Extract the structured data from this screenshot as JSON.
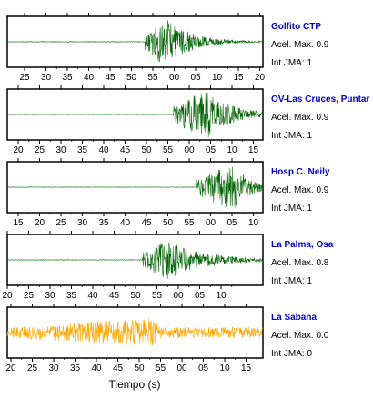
{
  "chart_data": {
    "type": "line",
    "xlabel": "Tiempo (s)",
    "traces": [
      {
        "station": "Golfito CTP",
        "accel_label": "Acel. Max. 0.9",
        "jma_label": "Int JMA: 1",
        "color": "#006400",
        "tick_labels": [
          "25",
          "30",
          "35",
          "40",
          "45",
          "50",
          "55",
          "00",
          "05",
          "10",
          "15",
          "20"
        ],
        "onset": 0.54,
        "peak": 0.62,
        "amplitude": 1.0,
        "noise": 0.01,
        "decay": 0.1
      },
      {
        "station": "OV-Las Cruces, Puntar",
        "accel_label": "Acel. Max. 0.9",
        "jma_label": "Int JMA: 1",
        "color": "#006400",
        "tick_labels": [
          "20",
          "25",
          "30",
          "35",
          "40",
          "45",
          "50",
          "55",
          "00",
          "05",
          "10",
          "15"
        ],
        "onset": 0.65,
        "peak": 0.78,
        "amplitude": 1.0,
        "noise": 0.01,
        "decay": 0.1
      },
      {
        "station": "Hosp C. Neily",
        "accel_label": "Acel. Max. 0.9",
        "jma_label": "Int JMA: 1",
        "color": "#006400",
        "tick_labels": [
          "15",
          "20",
          "25",
          "30",
          "35",
          "40",
          "45",
          "50",
          "55",
          "00",
          "05",
          "10"
        ],
        "onset": 0.74,
        "peak": 0.88,
        "amplitude": 1.0,
        "noise": 0.008,
        "decay": 0.07
      },
      {
        "station": "La Palma, Osa",
        "accel_label": "Acel. Max. 0.8",
        "jma_label": "Int JMA: 1",
        "color": "#006400",
        "tick_labels": [
          "20",
          "25",
          "30",
          "35",
          "40",
          "45",
          "50",
          "55",
          "00",
          "05",
          "10"
        ],
        "onset": 0.53,
        "peak": 0.62,
        "amplitude": 0.85,
        "noise": 0.01,
        "decay": 0.15
      },
      {
        "station": "La Sabana",
        "accel_label": "Acel. Max. 0.0",
        "jma_label": "Int JMA: 0",
        "color": "#ffa500",
        "tick_labels": [
          "20",
          "25",
          "30",
          "35",
          "40",
          "45",
          "50",
          "55",
          "00",
          "05",
          "10",
          "15"
        ],
        "onset": 0.0,
        "peak": 0.57,
        "amplitude": 0.6,
        "noise": 0.22,
        "decay": 0.04
      }
    ]
  }
}
